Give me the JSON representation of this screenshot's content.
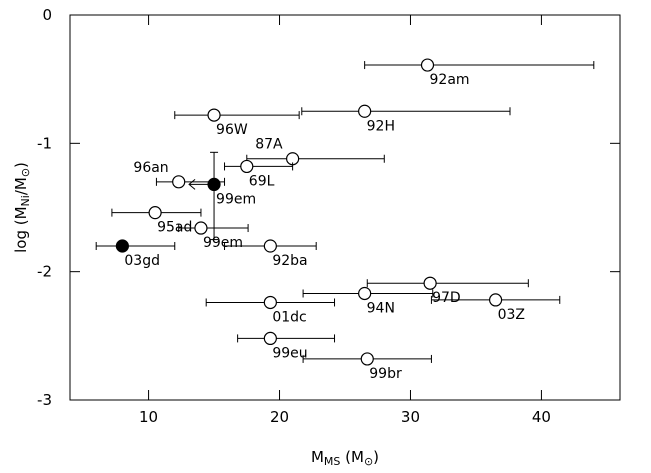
{
  "chart_data": {
    "type": "scatter",
    "x_label": [
      "M",
      "MS",
      " (M",
      "⊙",
      ")"
    ],
    "y_label": [
      "log  (M",
      "Ni",
      "/M",
      "⊙",
      ")"
    ],
    "xlim": [
      4,
      46
    ],
    "ylim": [
      -3,
      0
    ],
    "xticks": [
      10,
      20,
      30,
      40
    ],
    "yticks": [
      0,
      -1,
      -2,
      -3
    ],
    "points": [
      {
        "label": "92am",
        "x": 31.3,
        "y": -0.39,
        "x_range": [
          26.5,
          44
        ],
        "filled": false
      },
      {
        "label": "92H",
        "x": 26.5,
        "y": -0.75,
        "x_range": [
          21.7,
          37.6
        ],
        "filled": false
      },
      {
        "label": "96W",
        "x": 15,
        "y": -0.78,
        "x_range": [
          12,
          21.5
        ],
        "filled": false
      },
      {
        "label": "87A",
        "x": 21,
        "y": -1.12,
        "x_range": [
          17.5,
          28
        ],
        "filled": false
      },
      {
        "label": "69L",
        "x": 17.5,
        "y": -1.18,
        "x_range": [
          15.8,
          21
        ],
        "filled": false
      },
      {
        "label": "96an",
        "x": 12.3,
        "y": -1.3,
        "x_range": [
          10.6,
          15.8
        ],
        "filled": false
      },
      {
        "label": "99em",
        "x": 15,
        "y": -1.32,
        "y_range": [
          -1.75,
          -1.07
        ],
        "filled": true
      },
      {
        "label": "95ad",
        "x": 10.5,
        "y": -1.54,
        "x_range": [
          7.2,
          14
        ],
        "filled": false
      },
      {
        "label": "99em",
        "x": 14,
        "y": -1.66,
        "x_range": [
          12.3,
          17.6
        ],
        "filled": false
      },
      {
        "label": "92ba",
        "x": 19.3,
        "y": -1.8,
        "x_range": [
          15.8,
          22.8
        ],
        "filled": false
      },
      {
        "label": "03gd",
        "x": 8,
        "y": -1.8,
        "x_range": [
          6,
          12
        ],
        "filled": true
      },
      {
        "label": "97D",
        "x": 31.5,
        "y": -2.09,
        "x_range": [
          26.7,
          39
        ],
        "filled": false
      },
      {
        "label": "94N",
        "x": 26.5,
        "y": -2.17,
        "x_range": [
          21.8,
          31.7
        ],
        "filled": false
      },
      {
        "label": "03Z",
        "x": 36.5,
        "y": -2.22,
        "x_range": [
          31.6,
          41.4
        ],
        "filled": false
      },
      {
        "label": "01dc",
        "x": 19.3,
        "y": -2.24,
        "x_range": [
          14.4,
          24.2
        ],
        "filled": false
      },
      {
        "label": "99eu",
        "x": 19.3,
        "y": -2.52,
        "x_range": [
          16.8,
          24.2
        ],
        "filled": false
      },
      {
        "label": "99br",
        "x": 26.7,
        "y": -2.68,
        "x_range": [
          21.8,
          31.6
        ],
        "filled": false
      }
    ]
  }
}
